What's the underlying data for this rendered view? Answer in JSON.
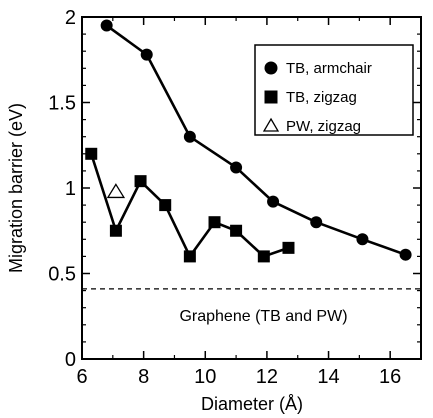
{
  "chart_data": {
    "type": "line",
    "xlabel": "Diameter (Å)",
    "ylabel": "Migration barrier (eV)",
    "xlim": [
      6,
      17
    ],
    "ylim": [
      0,
      2
    ],
    "xticks": [
      6,
      8,
      10,
      12,
      14,
      16
    ],
    "yticks": [
      0,
      0.5,
      1,
      1.5,
      2
    ],
    "xtick_labels": [
      "6",
      "8",
      "10",
      "12",
      "14",
      "16"
    ],
    "ytick_labels": [
      "0",
      "0.5",
      "1",
      "1.5",
      "2"
    ],
    "legend_position": "top-right",
    "series": [
      {
        "name": "TB, armchair",
        "marker": "circle",
        "connected": true,
        "x": [
          6.8,
          8.1,
          9.5,
          11.0,
          12.2,
          13.6,
          15.1,
          16.5
        ],
        "y": [
          1.95,
          1.78,
          1.3,
          1.12,
          0.92,
          0.8,
          0.7,
          0.61
        ]
      },
      {
        "name": "TB, zigzag",
        "marker": "square",
        "connected": true,
        "x": [
          6.3,
          7.1,
          7.9,
          8.7,
          9.5,
          10.3,
          11.0,
          11.9,
          12.7
        ],
        "y": [
          1.2,
          0.75,
          1.04,
          0.9,
          0.6,
          0.8,
          0.75,
          0.6,
          0.65
        ]
      },
      {
        "name": "PW, zigzag",
        "marker": "open-triangle",
        "connected": false,
        "x": [
          7.1
        ],
        "y": [
          0.98
        ]
      }
    ],
    "reference_lines": [
      {
        "y": 0.41,
        "style": "dashed",
        "label": "Graphene (TB and PW)"
      }
    ]
  }
}
